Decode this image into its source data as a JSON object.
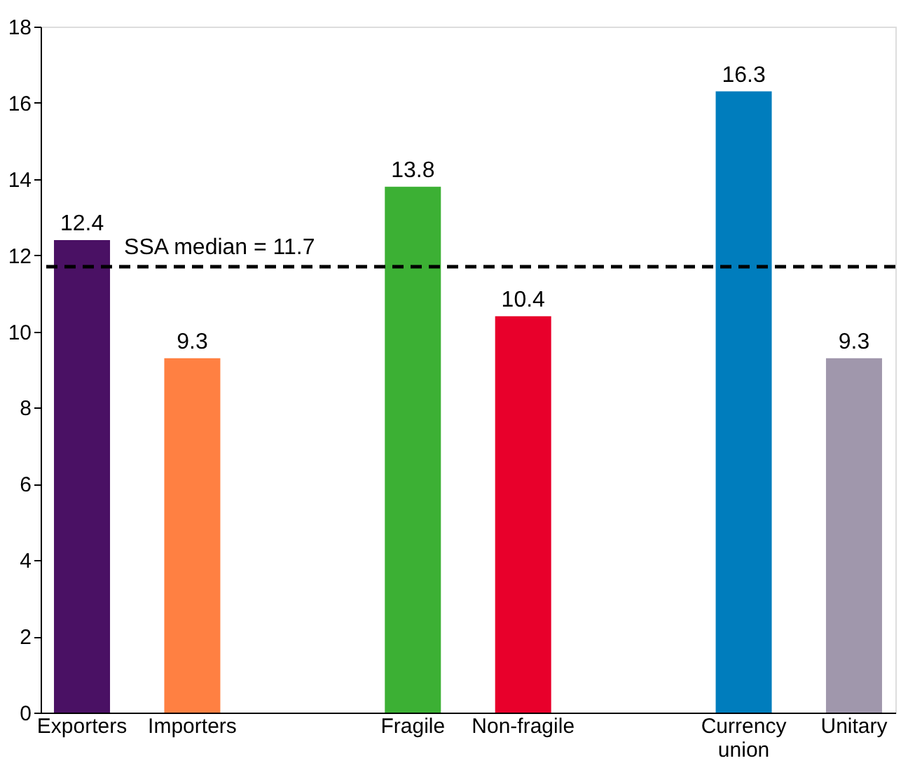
{
  "chart_data": {
    "type": "bar",
    "categories": [
      "Exporters",
      "Importers",
      null,
      "Fragile",
      "Non-fragile",
      null,
      "Currency union",
      "Unitary"
    ],
    "values": [
      12.4,
      9.3,
      null,
      13.8,
      10.4,
      null,
      16.3,
      9.3
    ],
    "colors": [
      "#4a1164",
      "#ff8042",
      null,
      "#3cb034",
      "#e8002b",
      null,
      "#007dbd",
      "#a097ac"
    ],
    "ylim": [
      0,
      18
    ],
    "yticks": [
      0,
      2,
      4,
      6,
      8,
      10,
      12,
      14,
      16,
      18
    ],
    "data_labels": true,
    "grid": false,
    "ref_lines": [
      {
        "axis": "y",
        "value": 11.7,
        "label": "SSA median = 11.7",
        "color": "#000000",
        "line_style": "dashed"
      }
    ]
  }
}
